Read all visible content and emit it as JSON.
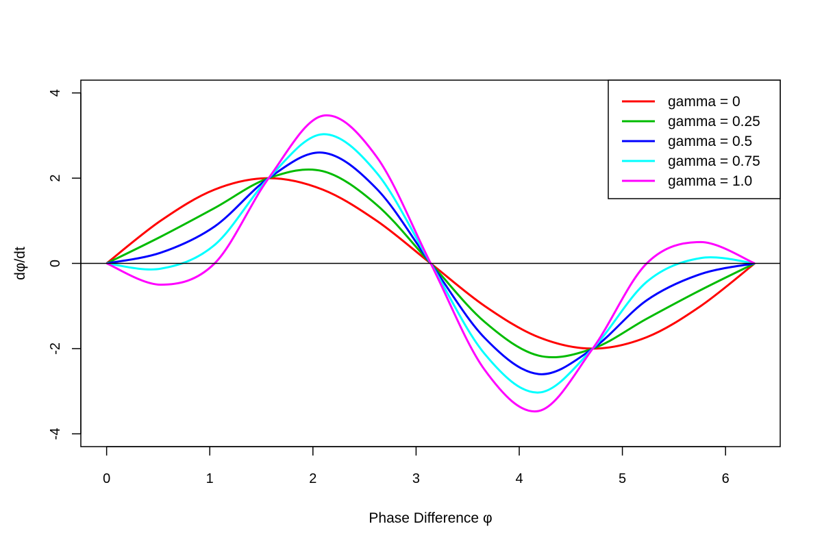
{
  "chart_data": {
    "type": "line",
    "title": "",
    "xlabel": "Phase Difference φ",
    "ylabel": "dφ/dt",
    "xlim": [
      -0.25,
      6.53
    ],
    "ylim": [
      -4.3,
      4.3
    ],
    "xticks": [
      0,
      1,
      2,
      3,
      4,
      5,
      6
    ],
    "yticks": [
      -4,
      -2,
      0,
      2,
      4
    ],
    "hline": 0,
    "grid": false,
    "legend_position": "top-right",
    "series": [
      {
        "name": "gamma = 0",
        "color": "#ff0000",
        "gamma": 0,
        "x": [
          0,
          0.5236,
          1.0472,
          1.5708,
          2.0944,
          2.618,
          3.1416,
          3.6652,
          4.1888,
          4.7124,
          5.236,
          5.7596,
          6.2832
        ],
        "values": [
          0,
          1.0,
          1.732,
          2.0,
          1.732,
          1.0,
          0,
          -1.0,
          -1.732,
          -2.0,
          -1.732,
          -1.0,
          0
        ]
      },
      {
        "name": "gamma = 0.25",
        "color": "#00bb00",
        "gamma": 0.25,
        "x": [
          0,
          0.5236,
          1.0472,
          1.5708,
          2.0944,
          2.618,
          3.1416,
          3.6652,
          4.1888,
          4.7124,
          5.236,
          5.7596,
          6.2832
        ],
        "values": [
          0,
          0.625,
          1.299,
          2.0,
          2.165,
          1.375,
          0,
          -1.375,
          -2.165,
          -2.0,
          -1.299,
          -0.625,
          0
        ]
      },
      {
        "name": "gamma = 0.5",
        "color": "#0000ff",
        "gamma": 0.5,
        "x": [
          0,
          0.5236,
          1.0472,
          1.5708,
          2.0944,
          2.618,
          3.1416,
          3.6652,
          4.1888,
          4.7124,
          5.236,
          5.7596,
          6.2832
        ],
        "values": [
          0,
          0.25,
          0.866,
          2.0,
          2.598,
          1.75,
          0,
          -1.75,
          -2.598,
          -2.0,
          -0.866,
          -0.25,
          0
        ]
      },
      {
        "name": "gamma = 0.75",
        "color": "#00ffff",
        "gamma": 0.75,
        "x": [
          0,
          0.5236,
          1.0472,
          1.5708,
          2.0944,
          2.618,
          3.1416,
          3.6652,
          4.1888,
          4.7124,
          5.236,
          5.7596,
          6.2832
        ],
        "values": [
          0,
          -0.125,
          0.433,
          2.0,
          3.031,
          2.125,
          0,
          -2.125,
          -3.031,
          -2.0,
          -0.433,
          0.125,
          0
        ]
      },
      {
        "name": "gamma = 1.0",
        "color": "#ff00ff",
        "gamma": 1.0,
        "x": [
          0,
          0.5236,
          1.0472,
          1.5708,
          2.0944,
          2.618,
          3.1416,
          3.6652,
          4.1888,
          4.7124,
          5.236,
          5.7596,
          6.2832
        ],
        "values": [
          0,
          -0.5,
          0,
          2.0,
          3.464,
          2.5,
          0,
          -2.5,
          -3.464,
          -2.0,
          0,
          0.5,
          0
        ]
      }
    ]
  }
}
